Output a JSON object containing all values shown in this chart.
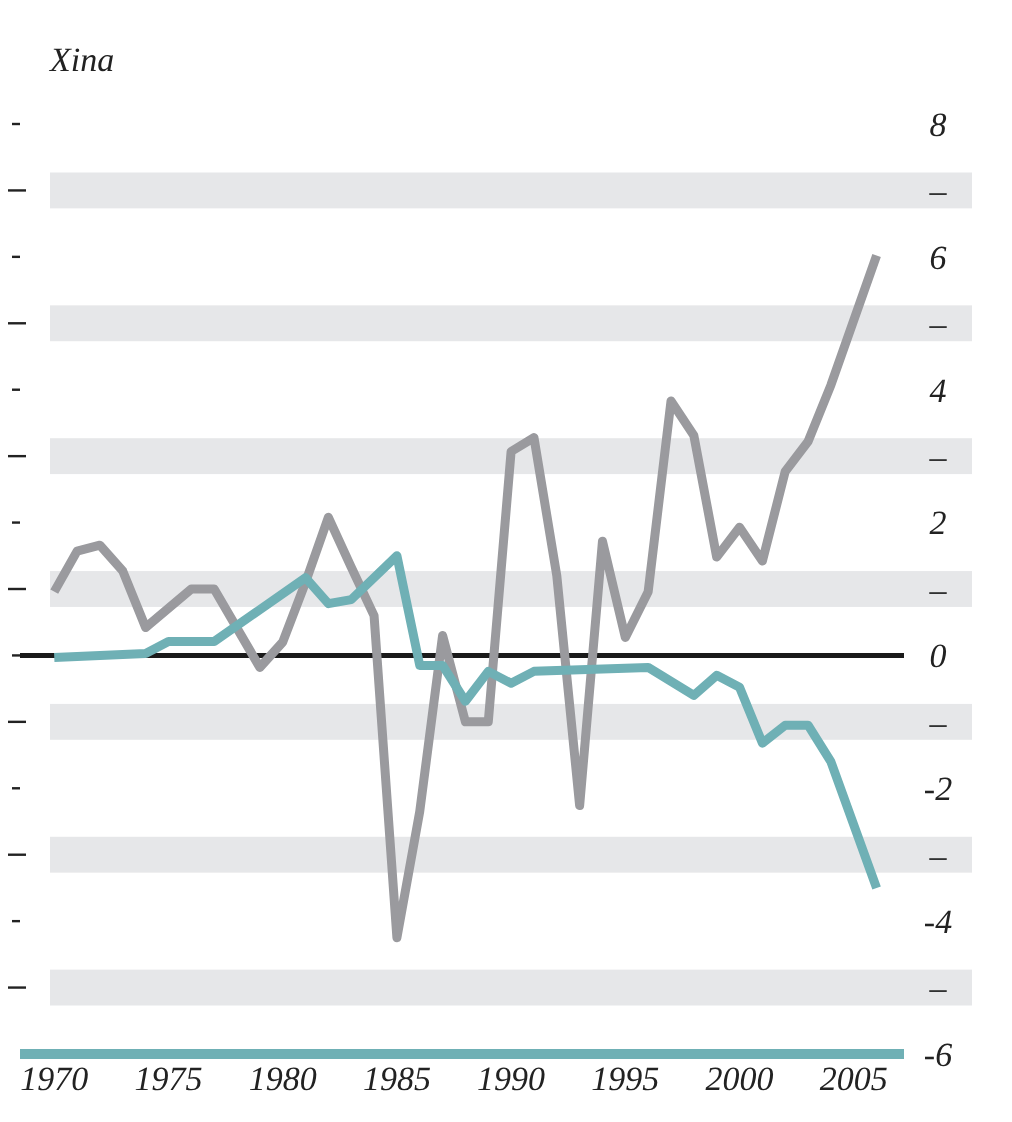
{
  "chart_data": {
    "type": "line",
    "title": "Xina",
    "xlim": [
      1968.5,
      2007.2
    ],
    "xticks": [
      1970,
      1975,
      1980,
      1985,
      1990,
      1995,
      2000,
      2005
    ],
    "ylim": [
      -6,
      8
    ],
    "yticks": [
      8,
      {
        "value": 7,
        "label": "–"
      },
      6,
      {
        "value": 5,
        "label": "–"
      },
      4,
      {
        "value": 3,
        "label": "–"
      },
      2,
      {
        "value": 1,
        "label": "–"
      },
      0,
      {
        "value": -1,
        "label": "–"
      },
      -2,
      {
        "value": -3,
        "label": "–"
      },
      -4,
      {
        "value": -5,
        "label": "–"
      },
      -6
    ],
    "bands": [
      {
        "axis": "y",
        "from": 6.73,
        "to": 7.27,
        "color": "#e6e7e9"
      },
      {
        "axis": "y",
        "from": 4.73,
        "to": 5.27,
        "color": "#e6e7e9"
      },
      {
        "axis": "y",
        "from": 2.73,
        "to": 3.27,
        "color": "#e6e7e9"
      },
      {
        "axis": "y",
        "from": 0.73,
        "to": 1.27,
        "color": "#e6e7e9"
      },
      {
        "axis": "y",
        "from": -1.27,
        "to": -0.73,
        "color": "#e6e7e9"
      },
      {
        "axis": "y",
        "from": -3.27,
        "to": -2.73,
        "color": "#e6e7e9"
      },
      {
        "axis": "y",
        "from": -5.27,
        "to": -4.73,
        "color": "#e6e7e9"
      }
    ],
    "ref_lines": [
      {
        "axis": "y",
        "value": 0,
        "color": "#1a1a1a"
      }
    ],
    "series": [
      {
        "color": "#9a9a9e",
        "x": [
          1970,
          1971,
          1972,
          1973,
          1974,
          1976,
          1977,
          1979,
          1980,
          1981,
          1982,
          1983,
          1984,
          1985,
          1986,
          1987,
          1988,
          1989,
          1990,
          1991,
          1992,
          1993,
          1994,
          1995,
          1996,
          1997,
          1998,
          1999,
          2000,
          2001,
          2002,
          2003,
          2004,
          2006
        ],
        "values": [
          0.96,
          1.57,
          1.66,
          1.27,
          0.42,
          1.0,
          1.0,
          -0.18,
          0.2,
          1.1,
          2.08,
          1.33,
          0.6,
          -4.25,
          -2.35,
          0.3,
          -1.0,
          -1.0,
          3.07,
          3.28,
          1.2,
          -2.26,
          1.72,
          0.27,
          0.96,
          3.83,
          3.31,
          1.48,
          1.93,
          1.42,
          2.77,
          3.22,
          4.07,
          6.02
        ]
      },
      {
        "color": "#6fb0b5",
        "x": [
          1970,
          1974,
          1975,
          1977,
          1981,
          1982,
          1983,
          1985,
          1986,
          1987,
          1988,
          1989,
          1990,
          1991,
          1996,
          1998,
          1999,
          2000,
          2001,
          2002,
          2003,
          2004,
          2006
        ],
        "values": [
          -0.03,
          0.03,
          0.21,
          0.21,
          1.17,
          0.78,
          0.84,
          1.5,
          -0.15,
          -0.15,
          -0.69,
          -0.24,
          -0.42,
          -0.24,
          -0.18,
          -0.6,
          -0.3,
          -0.48,
          -1.32,
          -1.05,
          -1.05,
          -1.6,
          -3.5
        ]
      }
    ]
  }
}
